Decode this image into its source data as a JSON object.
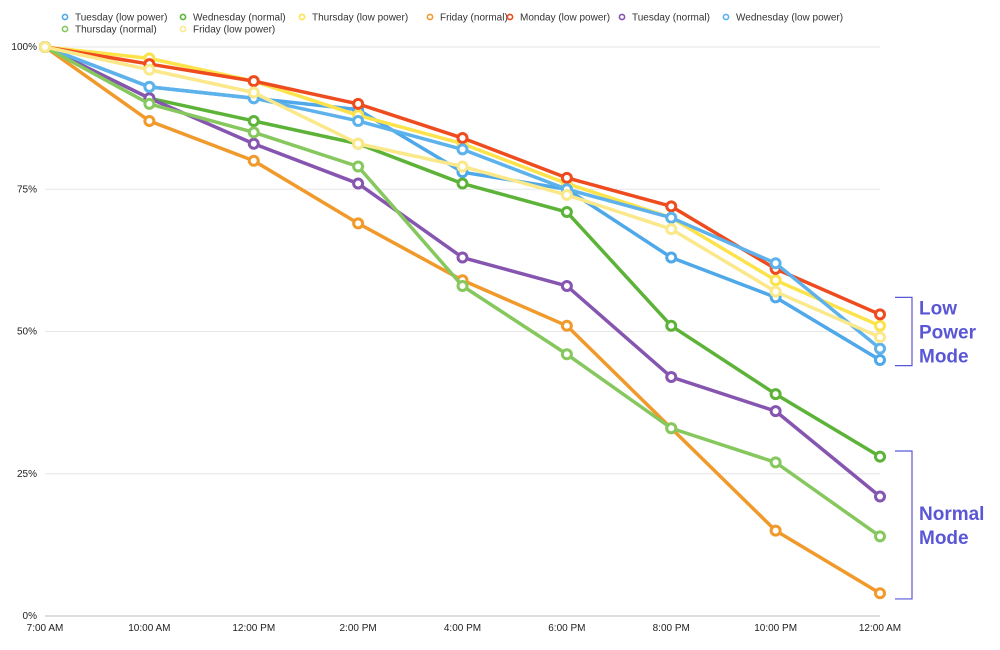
{
  "chart_data": {
    "type": "line",
    "title": "",
    "xlabel": "",
    "ylabel": "",
    "ylim": [
      0,
      100
    ],
    "categories": [
      "7:00 AM",
      "10:00 AM",
      "12:00 PM",
      "2:00 PM",
      "4:00 PM",
      "6:00 PM",
      "8:00 PM",
      "10:00 PM",
      "12:00 AM"
    ],
    "y_ticks": [
      "0%",
      "25%",
      "50%",
      "75%",
      "100%"
    ],
    "grid": true,
    "legend_position": "top",
    "series": [
      {
        "name": "Tuesday (low power)",
        "color": "#4ea8ea",
        "values": [
          100,
          93,
          91,
          89,
          78,
          75,
          63,
          56,
          45
        ]
      },
      {
        "name": "Wednesday (normal)",
        "color": "#5cb338",
        "values": [
          100,
          91,
          87,
          83,
          76,
          71,
          51,
          39,
          28
        ]
      },
      {
        "name": "Thursday (low power)",
        "color": "#fce34b",
        "values": [
          100,
          98,
          94,
          88,
          83,
          76,
          70,
          59,
          51
        ]
      },
      {
        "name": "Friday (normal)",
        "color": "#f19a2c",
        "values": [
          100,
          87,
          80,
          69,
          59,
          51,
          33,
          15,
          4
        ]
      },
      {
        "name": "Monday (low power)",
        "color": "#ee4b1f",
        "values": [
          100,
          97,
          94,
          90,
          84,
          77,
          72,
          61,
          53
        ]
      },
      {
        "name": "Tuesday (normal)",
        "color": "#8655b0",
        "values": [
          100,
          91,
          83,
          76,
          63,
          58,
          42,
          36,
          21
        ]
      },
      {
        "name": "Wednesday (low power)",
        "color": "#5eb2ec",
        "values": [
          100,
          93,
          91,
          87,
          82,
          75,
          70,
          62,
          47
        ]
      },
      {
        "name": "Thursday (normal)",
        "color": "#86c85e",
        "values": [
          100,
          90,
          85,
          79,
          58,
          46,
          33,
          27,
          14
        ]
      },
      {
        "name": "Friday (low power)",
        "color": "#fae88a",
        "values": [
          100,
          96,
          92,
          83,
          79,
          74,
          68,
          57,
          49
        ]
      }
    ],
    "annotations": [
      {
        "text_lines": [
          "Low",
          "Power",
          "Mode"
        ],
        "range": [
          44,
          56
        ],
        "color": "#5a57d6"
      },
      {
        "text_lines": [
          "Normal",
          "Mode"
        ],
        "range": [
          3,
          29
        ],
        "color": "#5a57d6"
      }
    ]
  }
}
